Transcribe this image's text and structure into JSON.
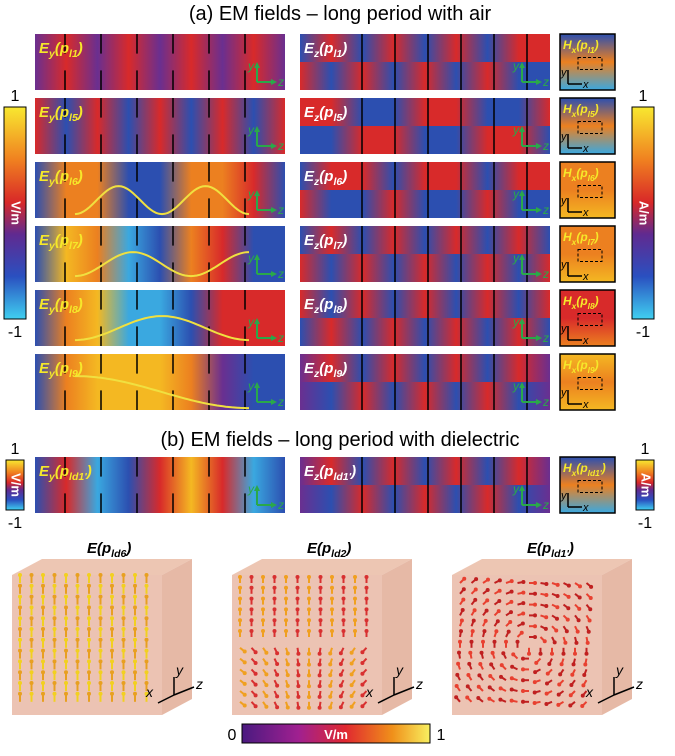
{
  "section_a": {
    "title": "(a) EM fields – long period with air",
    "rows": [
      {
        "ey": [
          "E",
          "y",
          "(p",
          "l1",
          ")"
        ],
        "ez": [
          "E",
          "z",
          "(p",
          "l1",
          ")"
        ],
        "hx": [
          "H",
          "x",
          "(p",
          "l1",
          ")"
        ]
      },
      {
        "ey": [
          "E",
          "y",
          "(p",
          "l5",
          ")"
        ],
        "ez": [
          "E",
          "z",
          "(p",
          "l5",
          ")"
        ],
        "hx": [
          "H",
          "x",
          "(p",
          "l5",
          ")"
        ]
      },
      {
        "ey": [
          "E",
          "y",
          "(p",
          "l6",
          ")"
        ],
        "ez": [
          "E",
          "z",
          "(p",
          "l6",
          ")"
        ],
        "hx": [
          "H",
          "x",
          "(p",
          "l6",
          ")"
        ]
      },
      {
        "ey": [
          "E",
          "y",
          "(p",
          "l7",
          ")"
        ],
        "ez": [
          "E",
          "z",
          "(p",
          "l7",
          ")"
        ],
        "hx": [
          "H",
          "x",
          "(p",
          "l7",
          ")"
        ]
      },
      {
        "ey": [
          "E",
          "y",
          "(p",
          "l8",
          ")"
        ],
        "ez": [
          "E",
          "z",
          "(p",
          "l8",
          ")"
        ],
        "hx": [
          "H",
          "x",
          "(p",
          "l8",
          ")"
        ]
      },
      {
        "ey": [
          "E",
          "y",
          "(p",
          "l9",
          ")"
        ],
        "ez": [
          "E",
          "z",
          "(p",
          "l9",
          ")"
        ],
        "hx": [
          "H",
          "x",
          "(p",
          "l9",
          ")"
        ]
      }
    ],
    "colorbar_e": {
      "max": "1",
      "min": "-1",
      "unit": "V/m"
    },
    "colorbar_h": {
      "max": "1",
      "min": "-1",
      "unit": "A/m"
    }
  },
  "section_b": {
    "title": "(b) EM fields – long period with dielectric",
    "row": {
      "ey": [
        "E",
        "y",
        "(p",
        "ld1'",
        ")"
      ],
      "ez": [
        "E",
        "z",
        "(p",
        "ld1'",
        ")"
      ],
      "hx": [
        "H",
        "x",
        "(p",
        "ld1'",
        ")"
      ]
    },
    "colorbar_e": {
      "max": "1",
      "min": "-1",
      "unit": "V/m"
    },
    "colorbar_h": {
      "max": "1",
      "min": "-1",
      "unit": "A/m"
    }
  },
  "axes": {
    "y": "y",
    "z": "z",
    "x": "x"
  },
  "vector_plots": [
    [
      "E(p",
      "ld6",
      ")"
    ],
    [
      "E(p",
      "ld2",
      ")"
    ],
    [
      "E(p",
      "ld1'",
      ")"
    ]
  ],
  "colorbar_magnitude": {
    "min": "0",
    "max": "1",
    "unit": "V/m"
  }
}
